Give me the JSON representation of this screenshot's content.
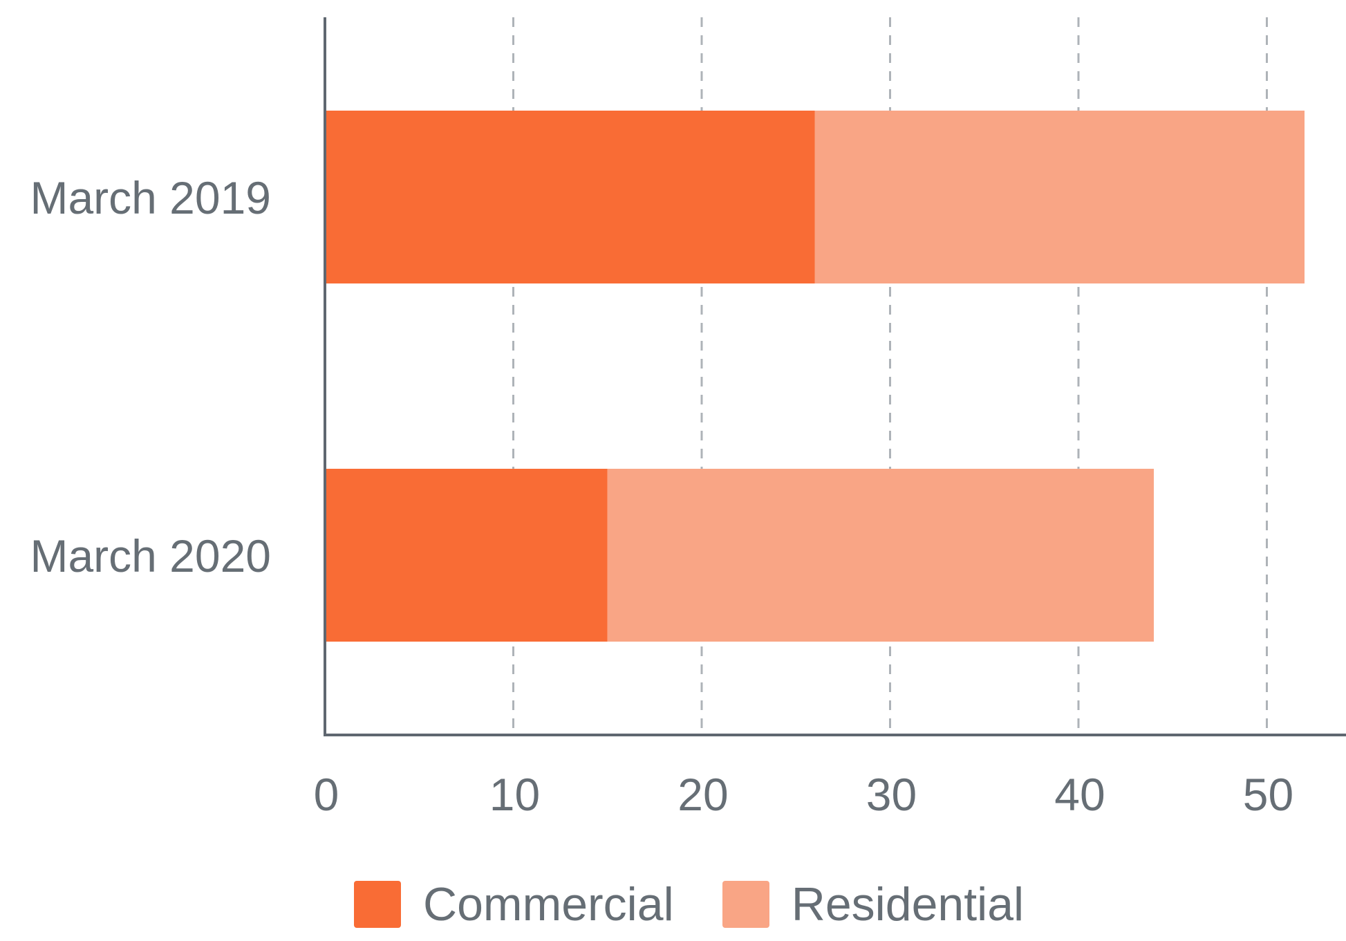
{
  "colors": {
    "commercial": "#f96c35",
    "residential": "#f9a585",
    "axis": "#5f6770",
    "grid": "#aeb3b8",
    "text": "#666e75"
  },
  "chart_data": {
    "type": "bar",
    "orientation": "horizontal",
    "stacked": true,
    "categories": [
      "March 2019",
      "March 2020"
    ],
    "series": [
      {
        "name": "Commercial",
        "values": [
          26,
          15
        ]
      },
      {
        "name": "Residential",
        "values": [
          26,
          29
        ]
      }
    ],
    "x_ticks": [
      0,
      10,
      20,
      30,
      40,
      50
    ],
    "xlim": [
      0,
      54
    ],
    "grid": "vertical dashed",
    "legend_placement": "bottom"
  }
}
